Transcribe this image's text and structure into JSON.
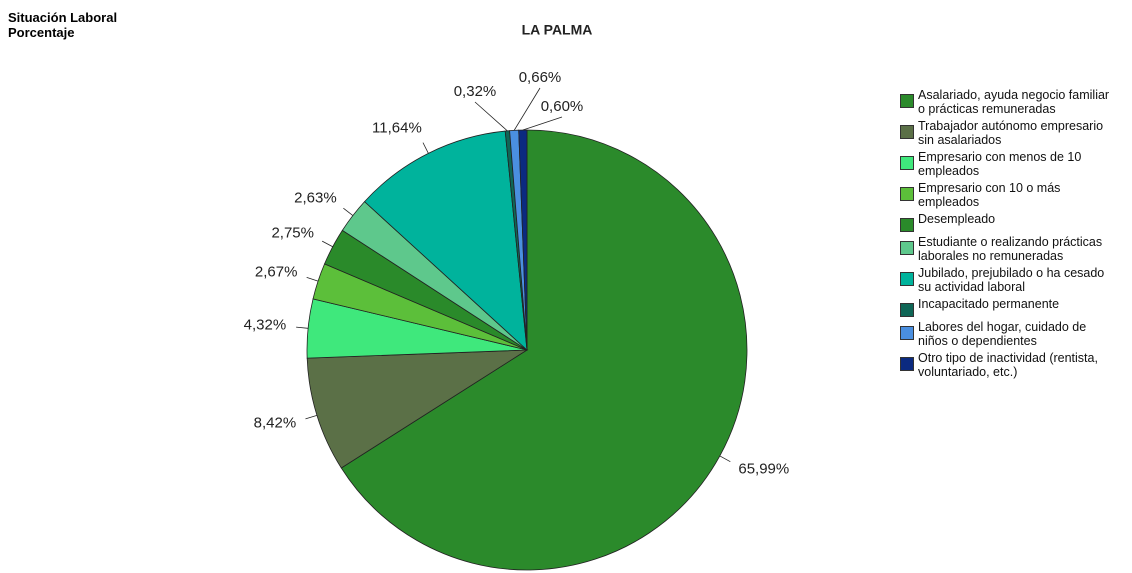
{
  "chart_data": {
    "type": "pie",
    "header": [
      "Situación Laboral",
      "Porcentaje"
    ],
    "title": "LA PALMA",
    "categories": [
      "Asalariado, ayuda negocio familiar o prácticas remuneradas",
      "Trabajador autónomo empresario sin asalariados",
      "Empresario con menos de 10 empleados",
      "Empresario con 10 o más empleados",
      "Desempleado",
      "Estudiante o realizando prácticas laborales no remuneradas",
      "Jubilado, prejubilado o ha cesado su actividad laboral",
      "Incapacitado permanente",
      "Labores del hogar, cuidado de niños o dependientes",
      "Otro tipo de inactividad (rentista, voluntariado, etc.)"
    ],
    "values": [
      65.99,
      8.42,
      4.32,
      2.67,
      2.75,
      2.63,
      11.64,
      0.32,
      0.66,
      0.6
    ],
    "value_labels": [
      "65,99%",
      "8,42%",
      "4,32%",
      "2,67%",
      "2,75%",
      "2,63%",
      "11,64%",
      "0,32%",
      "0,66%",
      "0,60%"
    ],
    "colors": [
      "#2b8a2b",
      "#5b7047",
      "#3fe87c",
      "#5cbf3a",
      "#2a8a2a",
      "#5ec88c",
      "#00b39c",
      "#0f6656",
      "#4a8fe0",
      "#0b2a80"
    ],
    "legend": "right"
  }
}
